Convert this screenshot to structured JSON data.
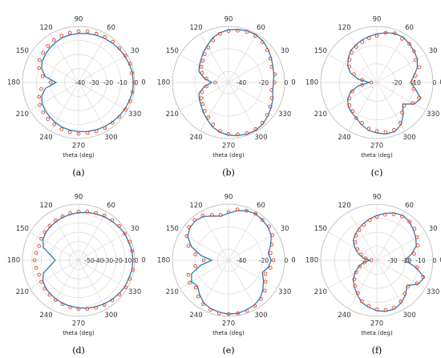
{
  "chart_data": [
    {
      "type": "polar",
      "caption": "(a)",
      "xlabel": "theta (deg)",
      "rlim": [
        -40,
        0
      ],
      "rticks": [
        -40,
        -30,
        -20,
        -10,
        0
      ],
      "thetaticks": [
        0,
        30,
        60,
        90,
        120,
        150,
        180,
        210,
        240,
        270,
        300,
        330
      ],
      "grid": true,
      "x": [
        0,
        10,
        20,
        30,
        40,
        50,
        60,
        70,
        80,
        90,
        100,
        110,
        120,
        130,
        140,
        150,
        160,
        170,
        180,
        190,
        200,
        210,
        220,
        230,
        240,
        250,
        260,
        270,
        280,
        290,
        300,
        310,
        320,
        330,
        340,
        350
      ],
      "series": [
        {
          "style": "line",
          "color": "#2b7bba",
          "values": [
            -1,
            -1,
            -1.5,
            -2,
            -2.5,
            -3,
            -3.5,
            -4,
            -4.5,
            -5,
            -5.5,
            -6,
            -7,
            -8,
            -9,
            -10,
            -12,
            -16,
            -24,
            -16,
            -12,
            -10,
            -9,
            -8,
            -7,
            -6,
            -5.5,
            -5,
            -4.5,
            -4,
            -3.5,
            -3,
            -2.5,
            -2,
            -1.5,
            -1
          ]
        },
        {
          "style": "markers",
          "color": "#e8401c",
          "values": [
            -0.5,
            -1.5,
            -1,
            -1.5,
            -2,
            -2,
            -2.5,
            -3,
            -3,
            -3.5,
            -4,
            -4.5,
            -5,
            -6,
            -7,
            -8,
            -10,
            -14,
            -20,
            -13,
            -10,
            -8,
            -7,
            -6,
            -5.5,
            -4.5,
            -4,
            -3.5,
            -3.5,
            -3,
            -2.5,
            -2.5,
            -2,
            -1.5,
            -1,
            -1
          ]
        }
      ]
    },
    {
      "type": "polar",
      "caption": "(b)",
      "xlabel": "theta (deg)",
      "rlim": [
        -50,
        0
      ],
      "rticks": [
        -40,
        -20,
        0
      ],
      "thetaticks": [
        0,
        30,
        60,
        90,
        120,
        150,
        180,
        210,
        240,
        270,
        300,
        330
      ],
      "grid": true,
      "x": [
        0,
        10,
        20,
        30,
        40,
        50,
        60,
        70,
        80,
        90,
        100,
        110,
        120,
        130,
        140,
        150,
        160,
        170,
        180,
        190,
        200,
        210,
        220,
        230,
        240,
        250,
        260,
        270,
        280,
        290,
        300,
        310,
        320,
        330,
        340,
        350
      ],
      "series": [
        {
          "style": "line",
          "color": "#2b7bba",
          "values": [
            -10,
            -9,
            -8,
            -6,
            -4,
            -2,
            -1,
            -1,
            -2,
            -3,
            -5,
            -8,
            -12,
            -15,
            -18,
            -20,
            -22,
            -28,
            -35,
            -28,
            -22,
            -20,
            -18,
            -15,
            -12,
            -8,
            -5,
            -3,
            -2,
            -1,
            -1,
            -2,
            -4,
            -6,
            -8,
            -10
          ]
        },
        {
          "style": "markers",
          "color": "#e8401c",
          "values": [
            -9,
            -8,
            -9,
            -7,
            -5,
            -3,
            -2,
            -2,
            -3,
            -4,
            -6,
            -10,
            -14,
            -17,
            -20,
            -22,
            -25,
            -30,
            -38,
            -30,
            -25,
            -22,
            -20,
            -17,
            -14,
            -10,
            -6,
            -4,
            -3,
            -2,
            -2,
            -3,
            -5,
            -7,
            -9,
            -11
          ]
        }
      ]
    },
    {
      "type": "polar",
      "caption": "(c)",
      "xlabel": "theta (deg)",
      "rlim": [
        -30,
        0
      ],
      "rticks": [
        -20,
        -10,
        0
      ],
      "thetaticks": [
        0,
        30,
        60,
        90,
        120,
        150,
        180,
        210,
        240,
        270,
        300,
        330
      ],
      "grid": true,
      "x": [
        0,
        10,
        20,
        30,
        40,
        50,
        60,
        70,
        80,
        90,
        100,
        110,
        120,
        130,
        140,
        150,
        160,
        170,
        180,
        190,
        200,
        210,
        220,
        230,
        240,
        250,
        260,
        270,
        280,
        290,
        300,
        310,
        320,
        330,
        340,
        350
      ],
      "series": [
        {
          "style": "line",
          "color": "#2b7bba",
          "values": [
            -12,
            -10,
            -7,
            -5,
            -4,
            -3,
            -2,
            -2,
            -3,
            -4,
            -5,
            -6,
            -7,
            -8,
            -10,
            -12,
            -15,
            -20,
            -26,
            -20,
            -15,
            -12,
            -10,
            -9,
            -8,
            -6,
            -4,
            -3,
            -2,
            -2,
            -4,
            -8,
            -12,
            -7,
            -5,
            -9
          ]
        },
        {
          "style": "markers",
          "color": "#e8401c",
          "values": [
            -11,
            -9,
            -6,
            -6,
            -4,
            -3,
            -3,
            -2,
            -3,
            -5,
            -6,
            -7,
            -8,
            -9,
            -11,
            -13,
            -17,
            -22,
            -27,
            -22,
            -16,
            -13,
            -11,
            -10,
            -8,
            -7,
            -5,
            -4,
            -3,
            -3,
            -5,
            -9,
            -11,
            -8,
            -6,
            -10
          ]
        }
      ]
    },
    {
      "type": "polar",
      "caption": "(d)",
      "xlabel": "theta (deg)",
      "rlim": [
        -60,
        0
      ],
      "rticks": [
        -50,
        -40,
        -30,
        -20,
        -10,
        0
      ],
      "thetaticks": [
        0,
        30,
        60,
        90,
        120,
        150,
        180,
        210,
        240,
        270,
        300,
        330
      ],
      "grid": true,
      "x": [
        0,
        10,
        20,
        30,
        40,
        50,
        60,
        70,
        80,
        90,
        100,
        110,
        120,
        130,
        140,
        150,
        160,
        170,
        180,
        190,
        200,
        210,
        220,
        230,
        240,
        250,
        260,
        270,
        280,
        290,
        300,
        310,
        320,
        330,
        340,
        350
      ],
      "series": [
        {
          "style": "line",
          "color": "#2b7bba",
          "values": [
            -2,
            -2,
            -3,
            -3,
            -4,
            -5,
            -6,
            -7,
            -8,
            -9,
            -10,
            -11,
            -12,
            -13,
            -14,
            -16,
            -20,
            -30,
            -35,
            -30,
            -20,
            -16,
            -14,
            -13,
            -12,
            -11,
            -10,
            -9,
            -8,
            -7,
            -6,
            -5,
            -4,
            -3,
            -3,
            -2
          ]
        },
        {
          "style": "markers",
          "color": "#e8401c",
          "values": [
            -1,
            -2,
            -2,
            -3,
            -3,
            -4,
            -5,
            -6,
            -7,
            -8,
            -9,
            -10,
            -11,
            -12,
            -13,
            -14,
            -15,
            -14,
            -13,
            -14,
            -15,
            -14,
            -13,
            -12,
            -11,
            -10,
            -9,
            -8,
            -7,
            -6,
            -5,
            -4,
            -3,
            -2,
            -2,
            -1
          ]
        }
      ]
    },
    {
      "type": "polar",
      "caption": "(e)",
      "xlabel": "theta (deg)",
      "rlim": [
        -50,
        0
      ],
      "rticks": [
        -40,
        -20,
        0
      ],
      "thetaticks": [
        0,
        30,
        60,
        90,
        120,
        150,
        180,
        210,
        240,
        270,
        300,
        330
      ],
      "grid": true,
      "x": [
        0,
        10,
        20,
        30,
        40,
        50,
        60,
        70,
        80,
        90,
        100,
        110,
        120,
        130,
        140,
        150,
        160,
        170,
        180,
        190,
        200,
        210,
        220,
        230,
        240,
        250,
        260,
        270,
        280,
        290,
        300,
        310,
        320,
        330,
        340,
        350
      ],
      "series": [
        {
          "style": "line",
          "color": "#2b7bba",
          "values": [
            -12,
            -14,
            -10,
            -6,
            -4,
            -3,
            -2,
            -3,
            -5,
            -8,
            -10,
            -8,
            -5,
            -4,
            -5,
            -8,
            -15,
            -25,
            -35,
            -25,
            -15,
            -12,
            -14,
            -10,
            -6,
            -4,
            -3,
            -2,
            -2,
            -3,
            -4,
            -6,
            -10,
            -14,
            -18,
            -14
          ]
        },
        {
          "style": "markers",
          "color": "#e8401c",
          "values": [
            -10,
            -12,
            -9,
            -5,
            -3,
            -3,
            -2,
            -3,
            -4,
            -7,
            -9,
            -7,
            -4,
            -3,
            -4,
            -7,
            -12,
            -20,
            -28,
            -20,
            -12,
            -10,
            -12,
            -8,
            -5,
            -3,
            -2,
            -2,
            -2,
            -2,
            -3,
            -5,
            -8,
            -12,
            -15,
            -12
          ]
        }
      ]
    },
    {
      "type": "polar",
      "caption": "(f)",
      "xlabel": "theta (deg)",
      "rlim": [
        -40,
        0
      ],
      "rticks": [
        -30,
        -20,
        -10,
        0
      ],
      "thetaticks": [
        0,
        30,
        60,
        90,
        120,
        150,
        180,
        210,
        240,
        270,
        300,
        330
      ],
      "grid": true,
      "x": [
        0,
        10,
        20,
        30,
        40,
        50,
        60,
        70,
        80,
        90,
        100,
        110,
        120,
        130,
        140,
        150,
        160,
        170,
        180,
        190,
        200,
        210,
        220,
        230,
        240,
        250,
        260,
        270,
        280,
        290,
        300,
        310,
        320,
        330,
        340,
        350
      ],
      "series": [
        {
          "style": "line",
          "color": "#2b7bba",
          "values": [
            -20,
            -15,
            -10,
            -8,
            -6,
            -4,
            -3,
            -4,
            -6,
            -8,
            -10,
            -12,
            -14,
            -16,
            -18,
            -22,
            -26,
            -30,
            -35,
            -30,
            -26,
            -22,
            -18,
            -15,
            -12,
            -8,
            -6,
            -4,
            -3,
            -3,
            -5,
            -8,
            -12,
            -6,
            -4,
            -12
          ]
        },
        {
          "style": "markers",
          "color": "#e8401c",
          "values": [
            -18,
            -13,
            -9,
            -7,
            -5,
            -4,
            -4,
            -5,
            -7,
            -9,
            -11,
            -13,
            -15,
            -17,
            -20,
            -24,
            -28,
            -32,
            -36,
            -31,
            -27,
            -23,
            -19,
            -16,
            -13,
            -9,
            -7,
            -5,
            -4,
            -4,
            -6,
            -9,
            -11,
            -7,
            -5,
            -11
          ]
        }
      ]
    }
  ]
}
